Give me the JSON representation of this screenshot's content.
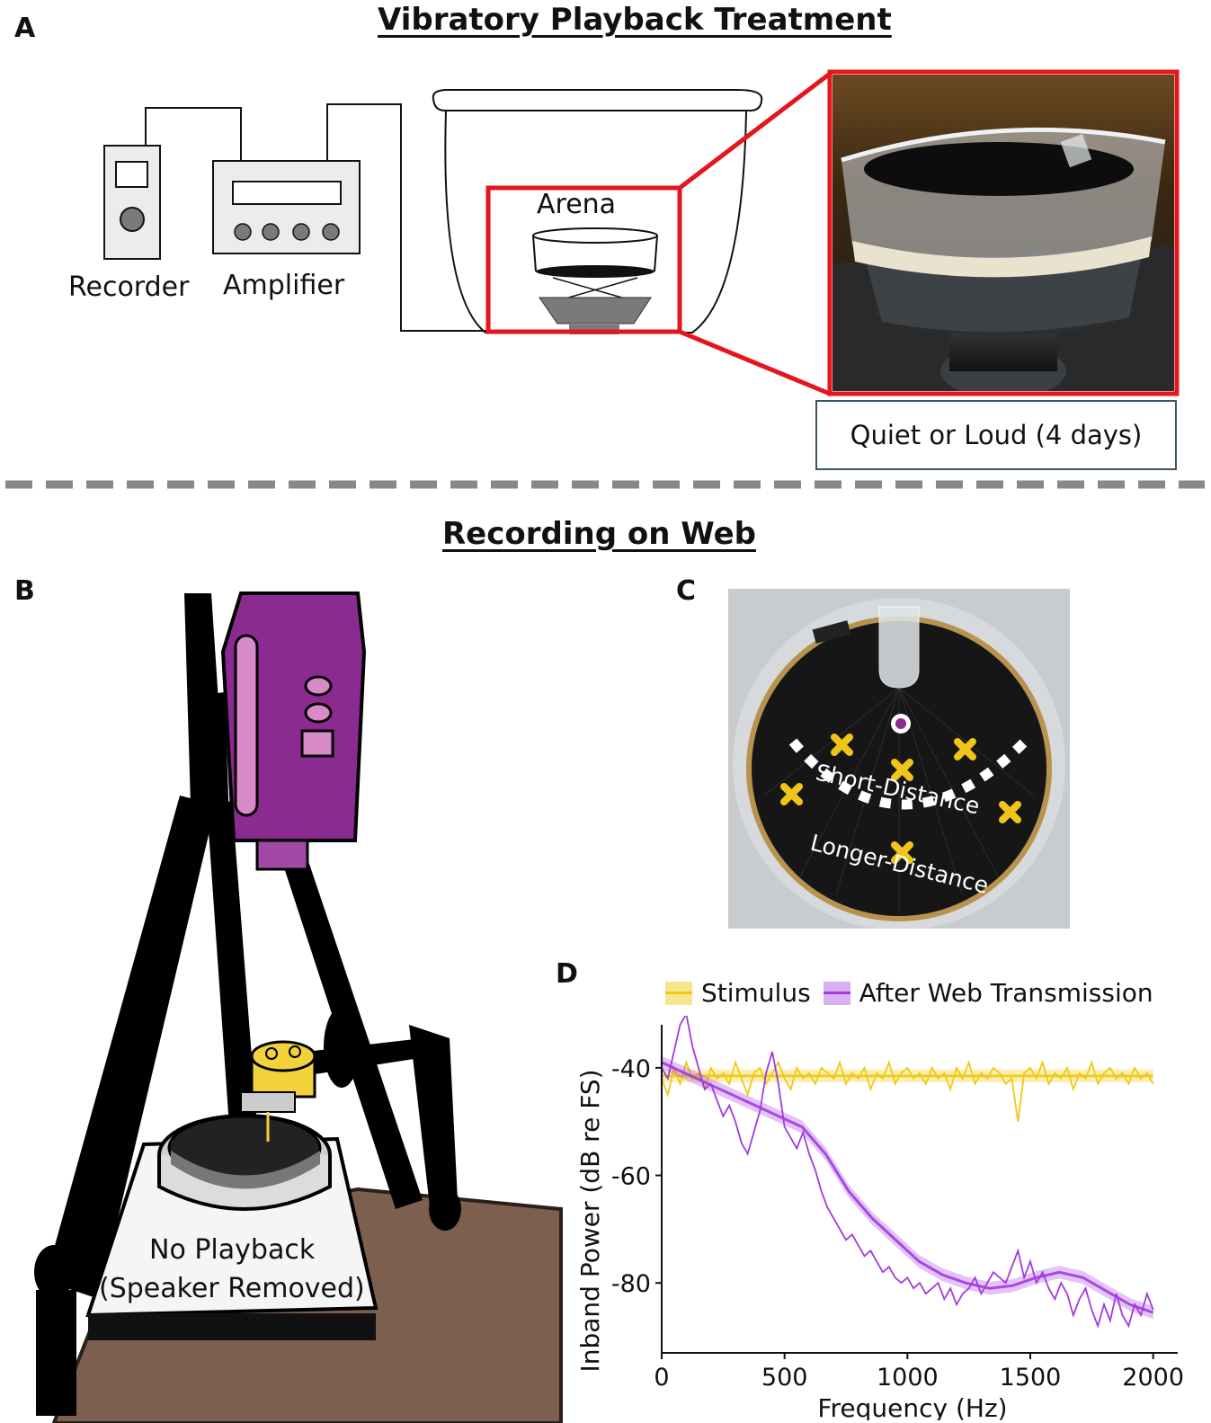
{
  "panels": {
    "a": "A",
    "b": "B",
    "c": "C",
    "d": "D"
  },
  "section_a": {
    "title": "Vibratory Playback Treatment",
    "recorder_label": "Recorder",
    "amplifier_label": "Amplifier",
    "arena_label": "Arena",
    "treatment_label": "Quiet or Loud (4 days)"
  },
  "section_b": {
    "title": "Recording on Web",
    "platform_label_line1": "No Playback",
    "platform_label_line2": "(Speaker Removed)"
  },
  "section_c": {
    "short_label": "Short-Distance",
    "long_label": "Longer-Distance"
  },
  "colors": {
    "highlight_red": "#e5161b",
    "stimulus": "#f1c90f",
    "web": "#a23be0",
    "camera_purple": "#8b2a91",
    "marker_yellow": "#f0c419",
    "table_brown": "#7c5f4e"
  },
  "chart_data": {
    "type": "line",
    "title": "",
    "xlabel": "Frequency (Hz)",
    "ylabel": "Inband Power (dB re FS)",
    "xlim": [
      0,
      2100
    ],
    "ylim": [
      -93,
      -32
    ],
    "xticks": [
      0,
      500,
      1000,
      1500,
      2000
    ],
    "yticks": [
      -40,
      -60,
      -80
    ],
    "legend_position": "top",
    "grid": false,
    "series": [
      {
        "name": "Stimulus",
        "color": "#f1c90f",
        "x": [
          0,
          25,
          50,
          75,
          100,
          125,
          150,
          175,
          200,
          225,
          250,
          275,
          300,
          325,
          350,
          375,
          400,
          425,
          450,
          475,
          500,
          525,
          550,
          575,
          600,
          625,
          650,
          675,
          700,
          725,
          750,
          775,
          800,
          825,
          850,
          875,
          900,
          925,
          950,
          975,
          1000,
          1025,
          1050,
          1075,
          1100,
          1125,
          1150,
          1175,
          1200,
          1225,
          1250,
          1275,
          1300,
          1325,
          1350,
          1375,
          1400,
          1425,
          1450,
          1475,
          1500,
          1525,
          1550,
          1575,
          1600,
          1625,
          1650,
          1675,
          1700,
          1725,
          1750,
          1775,
          1800,
          1825,
          1850,
          1875,
          1900,
          1925,
          1950,
          1975,
          2000
        ],
        "values": [
          -42,
          -45,
          -40,
          -43,
          -39,
          -42,
          -41,
          -44,
          -40,
          -42,
          -41,
          -43,
          -39,
          -42,
          -45,
          -41,
          -40,
          -43,
          -41,
          -39,
          -42,
          -44,
          -40,
          -42,
          -41,
          -43,
          -40,
          -41,
          -42,
          -39,
          -43,
          -41,
          -42,
          -40,
          -44,
          -41,
          -42,
          -39,
          -43,
          -41,
          -40,
          -42,
          -41,
          -43,
          -40,
          -42,
          -41,
          -44,
          -40,
          -42,
          -39,
          -43,
          -41,
          -42,
          -40,
          -41,
          -43,
          -42,
          -50,
          -41,
          -40,
          -42,
          -39,
          -43,
          -41,
          -42,
          -40,
          -44,
          -41,
          -42,
          -39,
          -43,
          -41,
          -40,
          -42,
          -41,
          -43,
          -40,
          -42,
          -41,
          -43
        ],
        "trend": [
          -41.5,
          -41.5
        ]
      },
      {
        "name": "After Web Transmission",
        "color": "#a23be0",
        "x": [
          0,
          25,
          50,
          75,
          100,
          125,
          150,
          175,
          200,
          225,
          250,
          275,
          300,
          325,
          350,
          375,
          400,
          425,
          450,
          475,
          500,
          525,
          550,
          575,
          600,
          625,
          650,
          675,
          700,
          725,
          750,
          775,
          800,
          825,
          850,
          875,
          900,
          925,
          950,
          975,
          1000,
          1025,
          1050,
          1075,
          1100,
          1125,
          1150,
          1175,
          1200,
          1225,
          1250,
          1275,
          1300,
          1325,
          1350,
          1375,
          1400,
          1425,
          1450,
          1475,
          1500,
          1525,
          1550,
          1575,
          1600,
          1625,
          1650,
          1675,
          1700,
          1725,
          1750,
          1775,
          1800,
          1825,
          1850,
          1875,
          1900,
          1925,
          1950,
          1975,
          2000
        ],
        "values": [
          -40,
          -42,
          -37,
          -32,
          -30,
          -36,
          -40,
          -44,
          -43,
          -46,
          -49,
          -47,
          -50,
          -54,
          -56,
          -52,
          -48,
          -41,
          -37,
          -43,
          -51,
          -53,
          -55,
          -52,
          -56,
          -59,
          -63,
          -66,
          -68,
          -70,
          -72,
          -71,
          -73,
          -75,
          -74,
          -76,
          -78,
          -77,
          -79,
          -80,
          -79,
          -81,
          -80,
          -82,
          -81,
          -80,
          -83,
          -81,
          -84,
          -82,
          -81,
          -79,
          -82,
          -80,
          -78,
          -79,
          -80,
          -77,
          -74,
          -79,
          -76,
          -80,
          -78,
          -81,
          -83,
          -80,
          -82,
          -86,
          -83,
          -81,
          -85,
          -88,
          -84,
          -87,
          -82,
          -86,
          -88,
          -84,
          -86,
          -82,
          -85
        ],
        "trend": [
          -39,
          -41,
          -43,
          -45,
          -47,
          -49,
          -51,
          -56,
          -63,
          -68,
          -72,
          -76,
          -78.5,
          -80,
          -81,
          -80.5,
          -79,
          -78,
          -79,
          -81.5,
          -84,
          -85.5
        ]
      }
    ]
  }
}
